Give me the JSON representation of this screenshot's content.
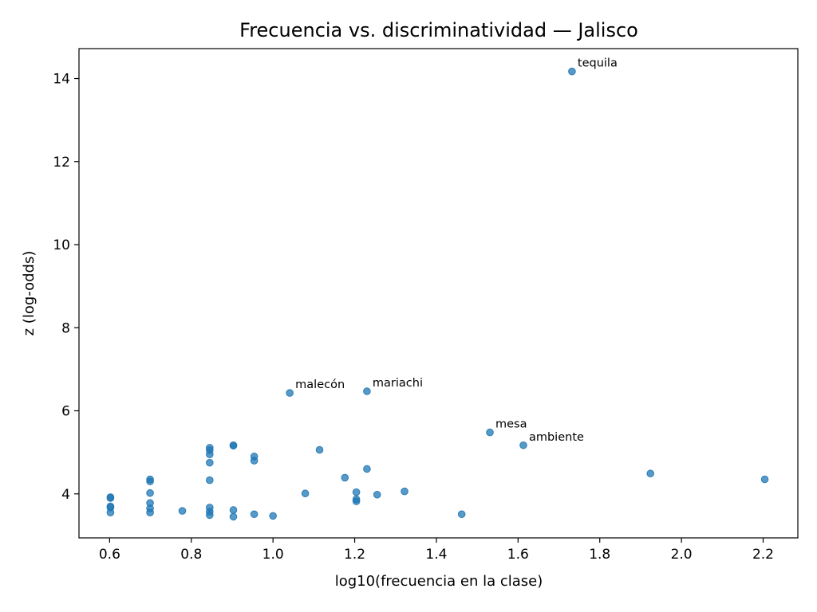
{
  "chart_data": {
    "type": "scatter",
    "title": "Frecuencia vs. discriminatividad — Jalisco",
    "xlabel": "log10(frecuencia en la clase)",
    "ylabel": "z (log-odds)",
    "xlim": [
      0.525,
      2.285
    ],
    "ylim": [
      2.94,
      14.72
    ],
    "xticks": [
      0.6,
      0.8,
      1.0,
      1.2,
      1.4,
      1.6,
      1.8,
      2.0,
      2.2
    ],
    "xtick_labels": [
      "0.6",
      "0.8",
      "1.0",
      "1.2",
      "1.4",
      "1.6",
      "1.8",
      "2.0",
      "2.2"
    ],
    "yticks": [
      4,
      6,
      8,
      10,
      12,
      14
    ],
    "ytick_labels": [
      "4",
      "6",
      "8",
      "10",
      "12",
      "14"
    ],
    "grid": false,
    "color": "#1f77b4",
    "points": [
      {
        "x": 1.732,
        "y": 14.17,
        "label": "tequila"
      },
      {
        "x": 1.041,
        "y": 6.43,
        "label": "malecón"
      },
      {
        "x": 1.23,
        "y": 6.47,
        "label": "mariachi"
      },
      {
        "x": 1.531,
        "y": 5.48,
        "label": "mesa"
      },
      {
        "x": 1.613,
        "y": 5.17,
        "label": "ambiente"
      },
      {
        "x": 1.924,
        "y": 4.49
      },
      {
        "x": 2.204,
        "y": 4.35
      },
      {
        "x": 0.602,
        "y": 3.92
      },
      {
        "x": 0.602,
        "y": 3.9
      },
      {
        "x": 0.602,
        "y": 3.7
      },
      {
        "x": 0.602,
        "y": 3.67
      },
      {
        "x": 0.602,
        "y": 3.55
      },
      {
        "x": 0.699,
        "y": 4.35
      },
      {
        "x": 0.699,
        "y": 4.3
      },
      {
        "x": 0.699,
        "y": 4.02
      },
      {
        "x": 0.699,
        "y": 3.78
      },
      {
        "x": 0.699,
        "y": 3.65
      },
      {
        "x": 0.699,
        "y": 3.55
      },
      {
        "x": 0.778,
        "y": 3.59
      },
      {
        "x": 0.845,
        "y": 5.11
      },
      {
        "x": 0.845,
        "y": 5.05
      },
      {
        "x": 0.845,
        "y": 4.95
      },
      {
        "x": 0.845,
        "y": 4.75
      },
      {
        "x": 0.845,
        "y": 4.33
      },
      {
        "x": 0.845,
        "y": 3.67
      },
      {
        "x": 0.845,
        "y": 3.57
      },
      {
        "x": 0.845,
        "y": 3.49
      },
      {
        "x": 0.903,
        "y": 5.17
      },
      {
        "x": 0.903,
        "y": 5.16
      },
      {
        "x": 0.903,
        "y": 3.61
      },
      {
        "x": 0.903,
        "y": 3.45
      },
      {
        "x": 0.954,
        "y": 4.9
      },
      {
        "x": 0.954,
        "y": 4.8
      },
      {
        "x": 0.954,
        "y": 3.51
      },
      {
        "x": 1.0,
        "y": 3.47
      },
      {
        "x": 1.079,
        "y": 4.01
      },
      {
        "x": 1.114,
        "y": 5.06
      },
      {
        "x": 1.176,
        "y": 4.39
      },
      {
        "x": 1.204,
        "y": 4.04
      },
      {
        "x": 1.204,
        "y": 3.87
      },
      {
        "x": 1.204,
        "y": 3.82
      },
      {
        "x": 1.23,
        "y": 4.6
      },
      {
        "x": 1.255,
        "y": 3.98
      },
      {
        "x": 1.322,
        "y": 4.06
      },
      {
        "x": 1.462,
        "y": 3.51
      }
    ]
  }
}
